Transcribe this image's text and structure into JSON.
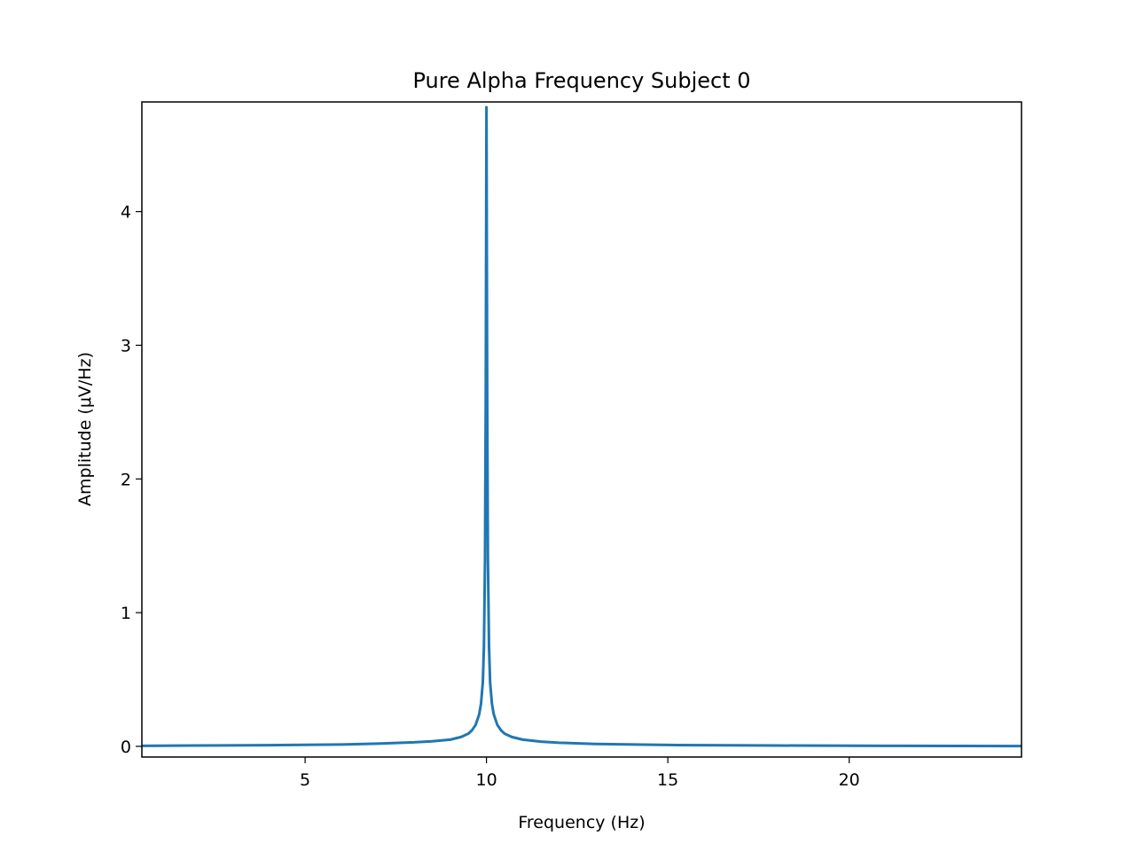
{
  "chart_data": {
    "type": "line",
    "title": "Pure Alpha Frequency Subject 0",
    "xlabel": "Frequency (Hz)",
    "ylabel": "Amplitude (μV/Hz)",
    "xlim": [
      0.5,
      24.75
    ],
    "ylim": [
      -0.08,
      4.82
    ],
    "xticks": [
      5,
      10,
      15,
      20
    ],
    "xtick_labels": [
      "5",
      "10",
      "15",
      "20"
    ],
    "yticks": [
      0,
      1,
      2,
      3,
      4
    ],
    "ytick_labels": [
      "0",
      "1",
      "2",
      "3",
      "4"
    ],
    "grid": false,
    "legend": "none",
    "series": [
      {
        "name": "Subject 0",
        "color": "#1f77b4",
        "x": [
          0.5,
          2,
          4,
          6,
          7,
          8,
          8.5,
          9,
          9.3,
          9.5,
          9.6,
          9.7,
          9.8,
          9.85,
          9.9,
          9.93,
          9.96,
          9.98,
          10.0,
          10.02,
          10.04,
          10.07,
          10.1,
          10.15,
          10.2,
          10.3,
          10.4,
          10.5,
          10.7,
          11,
          11.5,
          12,
          13,
          15,
          18,
          21,
          24.75
        ],
        "y": [
          0.004,
          0.006,
          0.009,
          0.014,
          0.02,
          0.03,
          0.038,
          0.05,
          0.07,
          0.095,
          0.12,
          0.16,
          0.24,
          0.32,
          0.48,
          0.75,
          1.4,
          2.6,
          4.78,
          2.6,
          1.4,
          0.75,
          0.48,
          0.32,
          0.24,
          0.16,
          0.12,
          0.095,
          0.07,
          0.05,
          0.035,
          0.027,
          0.018,
          0.01,
          0.006,
          0.004,
          0.002
        ]
      }
    ]
  }
}
